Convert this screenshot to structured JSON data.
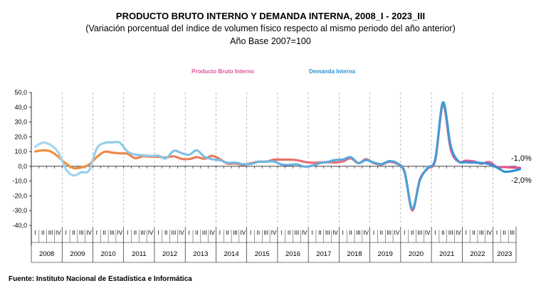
{
  "chart_data": {
    "type": "line",
    "title": "PRODUCTO BRUTO INTERNO Y DEMANDA INTERNA, 2008_I - 2023_III",
    "subtitle": "(Variación porcentual del índice de volumen físico respecto al mismo periodo del año anterior)",
    "subtitle2": "Año Base 2007=100",
    "source": "Fuente: Instituto Nacional de Estadística e Informática",
    "ylim": [
      -40,
      50
    ],
    "yticks": [
      "50,0",
      "40,0",
      "30,0",
      "20,0",
      "10,0",
      "0,0",
      "-10,0",
      "-20,0",
      "-30,0",
      "-40,0"
    ],
    "quarter_labels": [
      "I",
      "II",
      "III",
      "IV"
    ],
    "years": [
      "2008",
      "2009",
      "2010",
      "2011",
      "2012",
      "2013",
      "2014",
      "2015",
      "2016",
      "2017",
      "2018",
      "2019",
      "2020",
      "2021",
      "2022",
      "2023"
    ],
    "legend_position": "top",
    "grid": "vertical dashed year separators",
    "series": [
      {
        "name": "Producto Bruto Interno",
        "color_start": "#f0923c",
        "color_end": "#e0529a",
        "values": [
          10.0,
          10.8,
          10.1,
          6.5,
          1.8,
          -1.2,
          -0.8,
          1.2,
          6.2,
          9.8,
          9.3,
          8.8,
          8.5,
          5.5,
          6.8,
          6.5,
          6.4,
          6.0,
          6.8,
          5.1,
          4.9,
          6.2,
          5.1,
          7.1,
          4.9,
          1.8,
          1.9,
          1.0,
          2.0,
          3.1,
          3.1,
          4.5,
          4.5,
          4.5,
          4.2,
          3.0,
          2.4,
          2.6,
          2.8,
          2.6,
          3.3,
          5.5,
          2.1,
          4.8,
          2.2,
          1.2,
          3.0,
          1.8,
          -3.5,
          -29.8,
          -8.8,
          -1.5,
          4.2,
          41.9,
          11.8,
          3.2,
          3.8,
          3.3,
          1.8,
          2.9,
          -0.4,
          -0.5,
          -0.8,
          -1.0
        ]
      },
      {
        "name": "Demanda Interna",
        "color_start": "#a8d8ee",
        "color_end": "#2e8fd0",
        "values": [
          13.2,
          16.0,
          14.5,
          9.5,
          -2.0,
          -6.2,
          -4.0,
          -2.8,
          12.0,
          15.8,
          16.2,
          16.0,
          10.0,
          8.0,
          7.5,
          7.0,
          7.2,
          5.4,
          10.5,
          9.0,
          7.8,
          10.8,
          6.5,
          4.8,
          4.2,
          2.4,
          2.5,
          1.5,
          1.6,
          3.0,
          3.2,
          3.3,
          1.3,
          0.9,
          1.4,
          -0.2,
          0.4,
          2.1,
          3.0,
          4.3,
          4.6,
          6.2,
          2.2,
          4.2,
          2.6,
          1.5,
          3.5,
          2.2,
          -4.0,
          -28.8,
          -9.5,
          -1.0,
          5.0,
          43.3,
          14.0,
          3.5,
          2.8,
          2.5,
          2.3,
          1.5,
          -0.8,
          -3.6,
          -3.2,
          -2.0
        ]
      }
    ],
    "end_labels": [
      "-1,0%",
      "-2,0%"
    ]
  }
}
